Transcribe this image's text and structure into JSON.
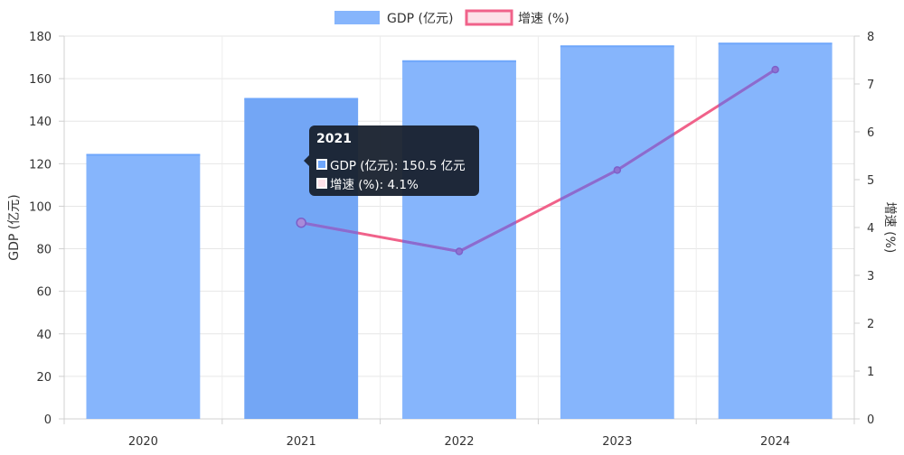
{
  "chart_data": {
    "type": "bar",
    "categories": [
      "2020",
      "2021",
      "2022",
      "2023",
      "2024"
    ],
    "series": [
      {
        "name": "GDP (亿元)",
        "type": "bar",
        "axis": "left",
        "values": [
          124.2,
          150.5,
          168.2,
          175.2,
          176.5
        ],
        "color": "#6ea6fb"
      },
      {
        "name": "增速 (%)",
        "type": "line",
        "axis": "right",
        "values": [
          null,
          4.1,
          3.5,
          5.2,
          7.3
        ],
        "color": "#f0628a"
      }
    ],
    "ylabel": "GDP (亿元)",
    "y2label": "增速 (%)",
    "ylim": [
      0,
      180
    ],
    "y2lim": [
      0,
      8
    ],
    "yticks": [
      0,
      20,
      40,
      60,
      80,
      100,
      120,
      140,
      160,
      180
    ],
    "y2ticks": [
      0,
      1,
      2,
      3,
      4,
      5,
      6,
      7,
      8
    ],
    "grid": true,
    "legend_position": "top-center",
    "tooltip": {
      "title": "2021",
      "rows": [
        "GDP (亿元): 150.5 亿元",
        "增速 (%): 4.1%"
      ]
    }
  }
}
